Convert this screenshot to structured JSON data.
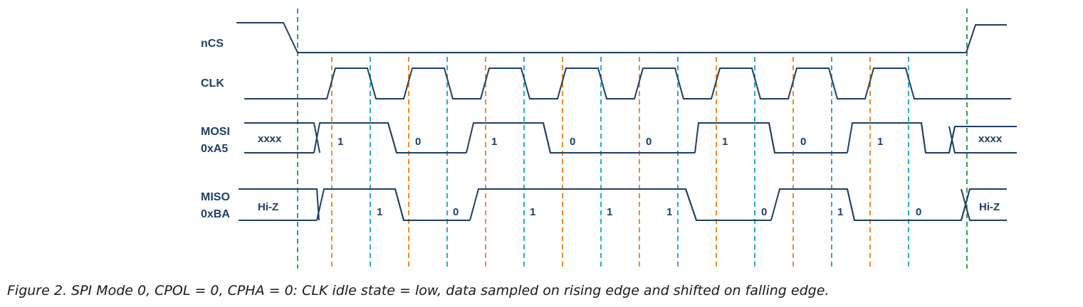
{
  "colors": {
    "signal": "#1f3f66",
    "cs_guide": "#2ea84f",
    "rising_guide": "#f28a24",
    "falling_guide": "#2aa9d9"
  },
  "signals": {
    "ncs": "nCS",
    "clk": "CLK",
    "mosi_name": "MOSI",
    "mosi_value": "0xA5",
    "miso_name": "MISO",
    "miso_value": "0xBA"
  },
  "mosi": {
    "idle": "xxxx",
    "bits": [
      "1",
      "0",
      "1",
      "0",
      "0",
      "1",
      "0",
      "1"
    ]
  },
  "miso": {
    "idle": "Hi-Z",
    "bits": [
      "1",
      "0",
      "1",
      "1",
      "1",
      "0",
      "1",
      "0"
    ]
  },
  "caption": "Figure 2. SPI Mode 0, CPOL = 0, CPHA = 0: CLK idle state = low, data sampled on rising edge and shifted on falling edge."
}
